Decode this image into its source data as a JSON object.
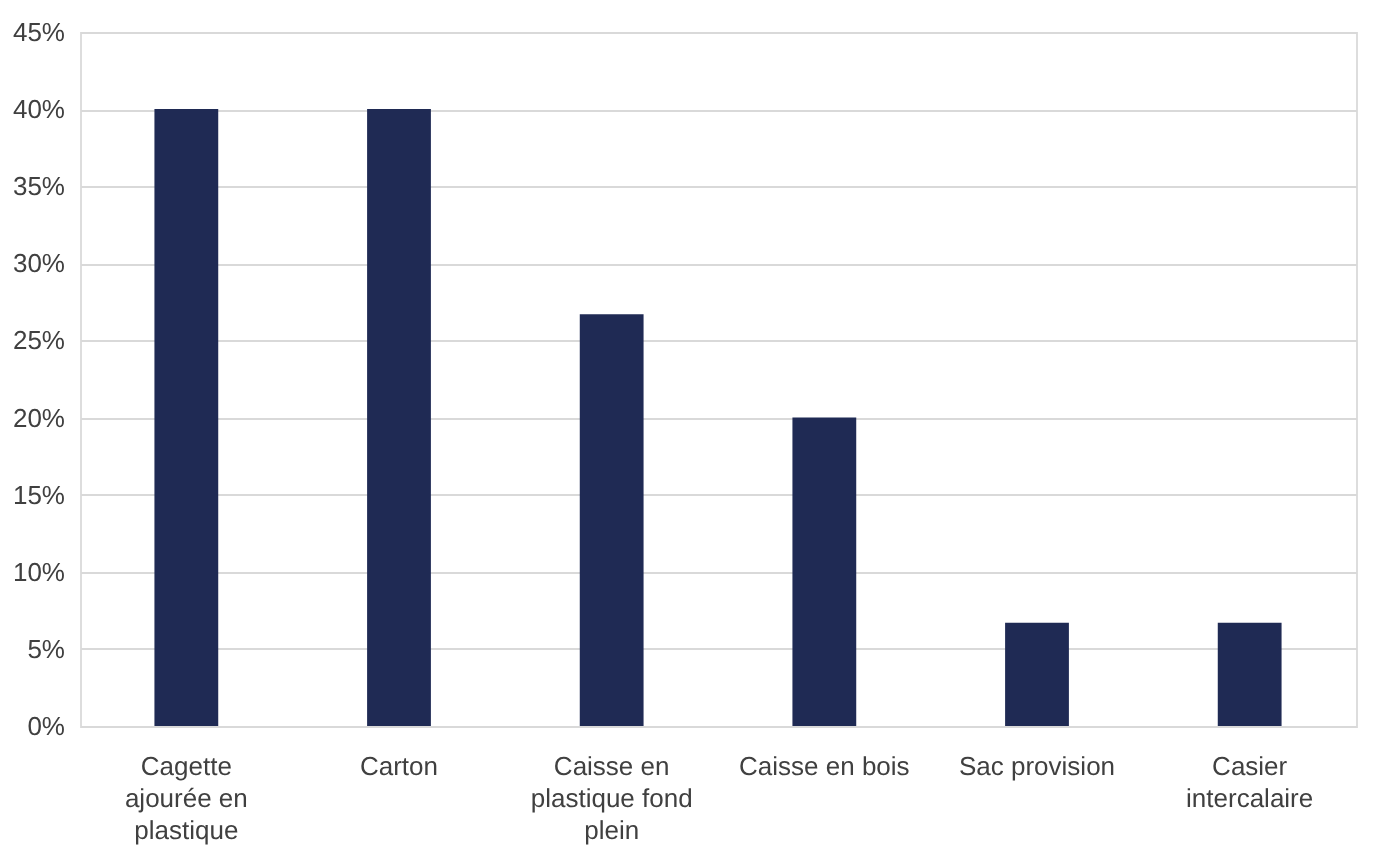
{
  "chart_data": {
    "type": "bar",
    "categories": [
      "Cagette ajourée en plastique",
      "Carton",
      "Caisse en plastique fond plein",
      "Caisse en bois",
      "Sac provision",
      "Casier intercalaire"
    ],
    "values": [
      40,
      40,
      26.7,
      20,
      6.7,
      6.7
    ],
    "color": "#1f2a54",
    "ylim": [
      0,
      45
    ],
    "yticks": [
      {
        "value": 0,
        "label": "0%"
      },
      {
        "value": 5,
        "label": "5%"
      },
      {
        "value": 10,
        "label": "10%"
      },
      {
        "value": 15,
        "label": "15%"
      },
      {
        "value": 20,
        "label": "20%"
      },
      {
        "value": 25,
        "label": "25%"
      },
      {
        "value": 30,
        "label": "30%"
      },
      {
        "value": 35,
        "label": "35%"
      },
      {
        "value": 40,
        "label": "40%"
      },
      {
        "value": 45,
        "label": "45%"
      }
    ],
    "grid": "y"
  }
}
